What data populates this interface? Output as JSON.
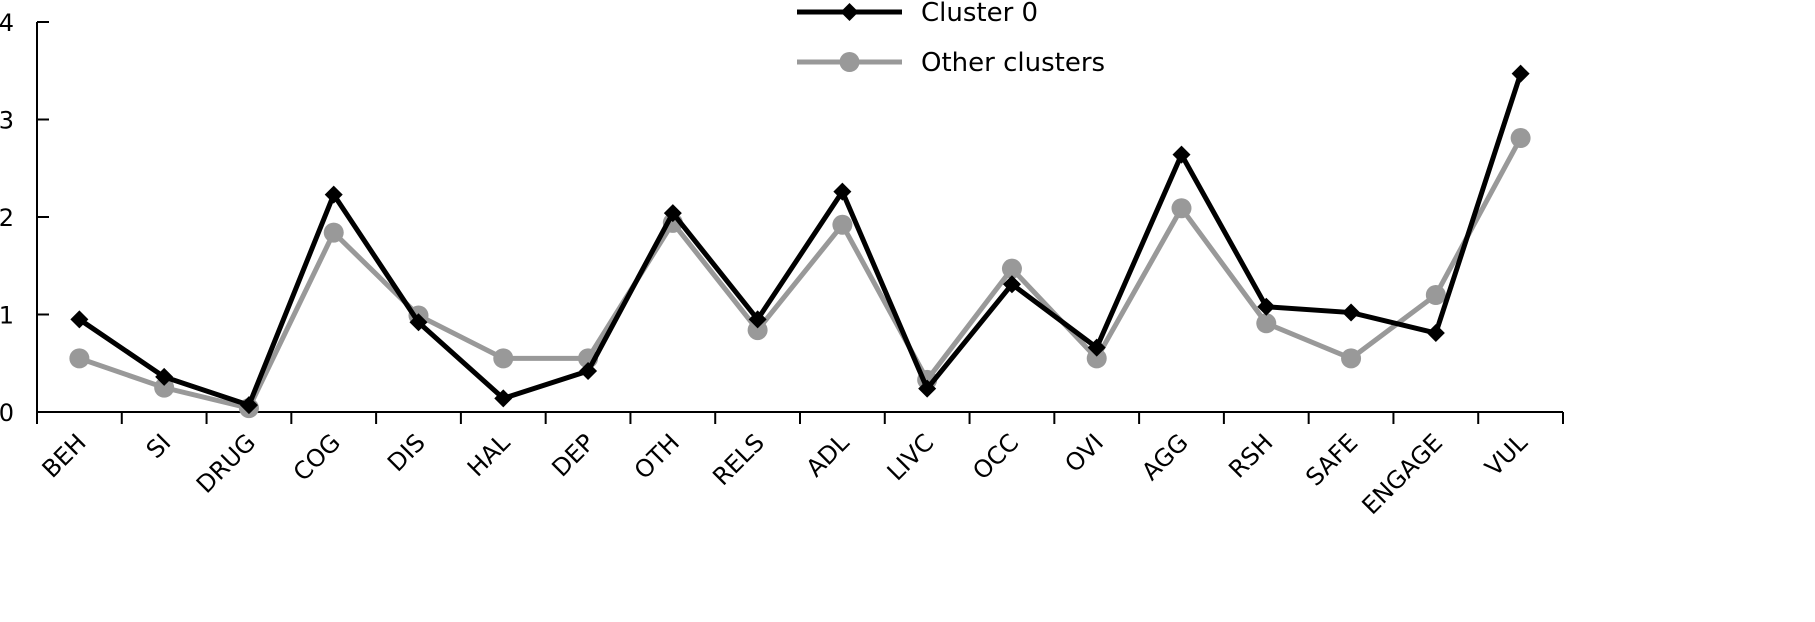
{
  "chart_data": {
    "type": "line",
    "categories": [
      "BEH",
      "SI",
      "DRUG",
      "COG",
      "DIS",
      "HAL",
      "DEP",
      "OTH",
      "RELS",
      "ADL",
      "LIVC",
      "OCC",
      "OVI",
      "AGG",
      "RSH",
      "SAFE",
      "ENGAGE",
      "VUL"
    ],
    "series": [
      {
        "name": "Cluster 0",
        "color": "#000000",
        "marker": "diamond",
        "values": [
          0.95,
          0.36,
          0.07,
          2.23,
          0.92,
          0.14,
          0.42,
          2.04,
          0.95,
          2.26,
          0.24,
          1.31,
          0.66,
          2.64,
          1.08,
          1.02,
          0.81,
          3.47
        ]
      },
      {
        "name": "Other clusters",
        "color": "#999999",
        "marker": "circle",
        "values": [
          0.55,
          0.25,
          0.04,
          1.84,
          0.99,
          0.55,
          0.55,
          1.94,
          0.84,
          1.92,
          0.33,
          1.47,
          0.55,
          2.09,
          0.91,
          0.55,
          1.2,
          2.81
        ]
      }
    ],
    "ylim": [
      0,
      4
    ],
    "yticks": [
      "0",
      "1",
      "2",
      "3",
      "4"
    ],
    "legend_position": "top-center",
    "grid": false
  }
}
